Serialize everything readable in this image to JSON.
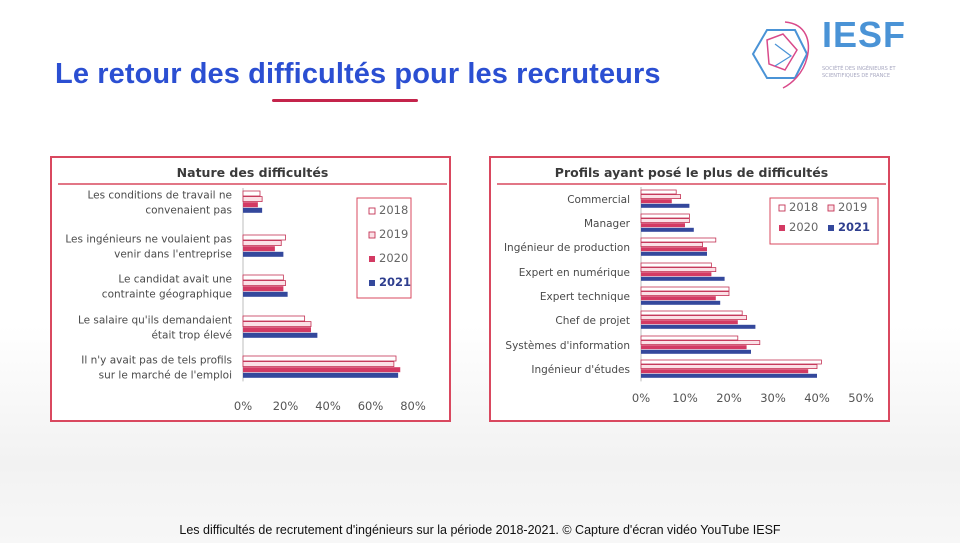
{
  "header": {
    "title": "Le retour des difficultés pour les recruteurs"
  },
  "logo": {
    "name": "IESF",
    "tagline": "Société des Ingénieurs et Scientifiques de France",
    "accent_colors": [
      "#4a93d6",
      "#d94a8a"
    ]
  },
  "colors": {
    "2018": "#ffffff",
    "2019": "#fbe0e6",
    "2020": "#d33a63",
    "2021": "#34489c",
    "panel_border": "#d9485f",
    "outline": "#c43355",
    "title": "#2b4fd2",
    "underline": "#c4244b"
  },
  "caption": "Les difficultés de recrutement d'ingénieurs sur la période 2018-2021.   © Capture d'écran vidéo YouTube IESF",
  "chart_data": [
    {
      "type": "bar",
      "orientation": "horizontal",
      "title": "Nature des difficultés",
      "categories": [
        [
          "Les conditions de travail ne",
          "convenaient pas"
        ],
        [
          "Les ingénieurs ne voulaient pas",
          "venir dans l'entreprise"
        ],
        [
          "Le candidat avait une",
          "contrainte géographique"
        ],
        [
          "Le salaire qu'ils demandaient",
          "était trop élevé"
        ],
        [
          "Il n'y avait pas de tels profils",
          "sur le marché de l'emploi"
        ]
      ],
      "series": [
        {
          "name": "2018",
          "values": [
            8,
            20,
            19,
            29,
            72
          ]
        },
        {
          "name": "2019",
          "values": [
            9,
            18,
            20,
            32,
            71
          ]
        },
        {
          "name": "2020",
          "values": [
            7,
            15,
            19,
            32,
            74
          ]
        },
        {
          "name": "2021",
          "values": [
            9,
            19,
            21,
            35,
            73
          ]
        }
      ],
      "xlim": [
        0,
        80
      ],
      "xticks": [
        "0%",
        "20%",
        "40%",
        "60%",
        "80%"
      ],
      "legend": {
        "placement": "right",
        "layout": "column",
        "bold_last": true
      },
      "grid": false
    },
    {
      "type": "bar",
      "orientation": "horizontal",
      "title": "Profils ayant posé le plus de difficultés",
      "categories": [
        [
          "Commercial"
        ],
        [
          "Manager"
        ],
        [
          "Ingénieur de production"
        ],
        [
          "Expert en numérique"
        ],
        [
          "Expert technique"
        ],
        [
          "Chef de projet"
        ],
        [
          "Systèmes d'information"
        ],
        [
          "Ingénieur d'études"
        ]
      ],
      "series": [
        {
          "name": "2018",
          "values": [
            8,
            11,
            17,
            16,
            20,
            23,
            22,
            41
          ]
        },
        {
          "name": "2019",
          "values": [
            9,
            11,
            14,
            17,
            20,
            24,
            27,
            40
          ]
        },
        {
          "name": "2020",
          "values": [
            7,
            10,
            15,
            16,
            17,
            22,
            24,
            38
          ]
        },
        {
          "name": "2021",
          "values": [
            11,
            12,
            15,
            19,
            18,
            26,
            25,
            40
          ]
        }
      ],
      "xlim": [
        0,
        50
      ],
      "xticks": [
        "0%",
        "10%",
        "20%",
        "30%",
        "40%",
        "50%"
      ],
      "legend": {
        "placement": "top-right",
        "layout": "grid-2x2",
        "bold_last": true
      },
      "grid": false
    }
  ]
}
